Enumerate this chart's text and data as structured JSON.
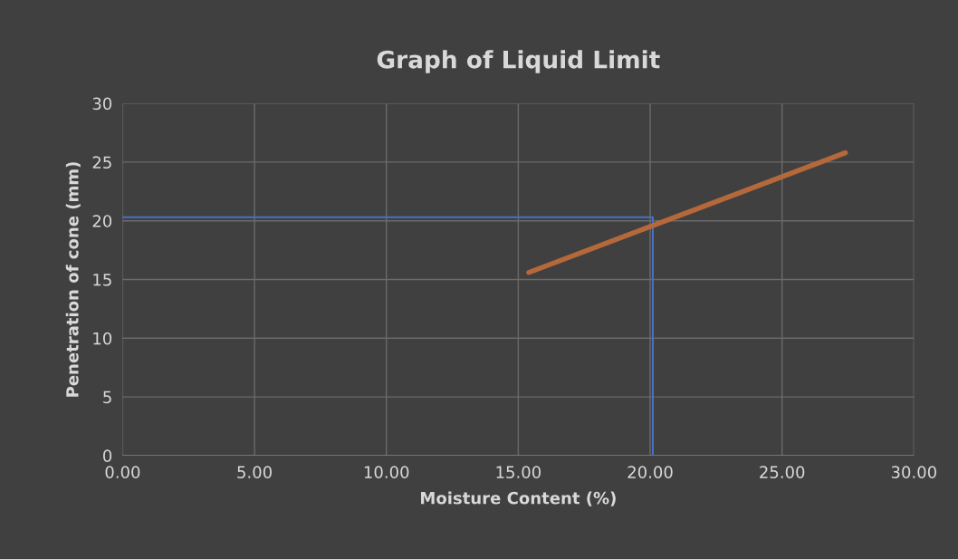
{
  "chart_data": {
    "type": "line",
    "title": "Graph of Liquid Limit",
    "xlabel": "Moisture Content (%)",
    "ylabel": "Penetration of cone (mm)",
    "series": [
      {
        "color": "#4472c4",
        "x": [
          0,
          20.1,
          20.1
        ],
        "values": [
          20.3,
          20.3,
          0
        ]
      },
      {
        "color": "#b5683a",
        "x": [
          15.4,
          27.4
        ],
        "values": [
          15.6,
          25.8
        ]
      }
    ],
    "xlim": [
      0,
      30
    ],
    "xticks": [
      {
        "value": 0,
        "label": "0.00"
      },
      {
        "value": 5,
        "label": "5.00"
      },
      {
        "value": 10,
        "label": "10.00"
      },
      {
        "value": 15,
        "label": "15.00"
      },
      {
        "value": 20,
        "label": "20.00"
      },
      {
        "value": 25,
        "label": "25.00"
      },
      {
        "value": 30,
        "label": "30.00"
      }
    ],
    "ylim": [
      0,
      30
    ],
    "yticks": [
      0,
      5,
      10,
      15,
      20,
      25,
      30
    ],
    "grid": true,
    "marker": "none",
    "line_style": "solid"
  }
}
